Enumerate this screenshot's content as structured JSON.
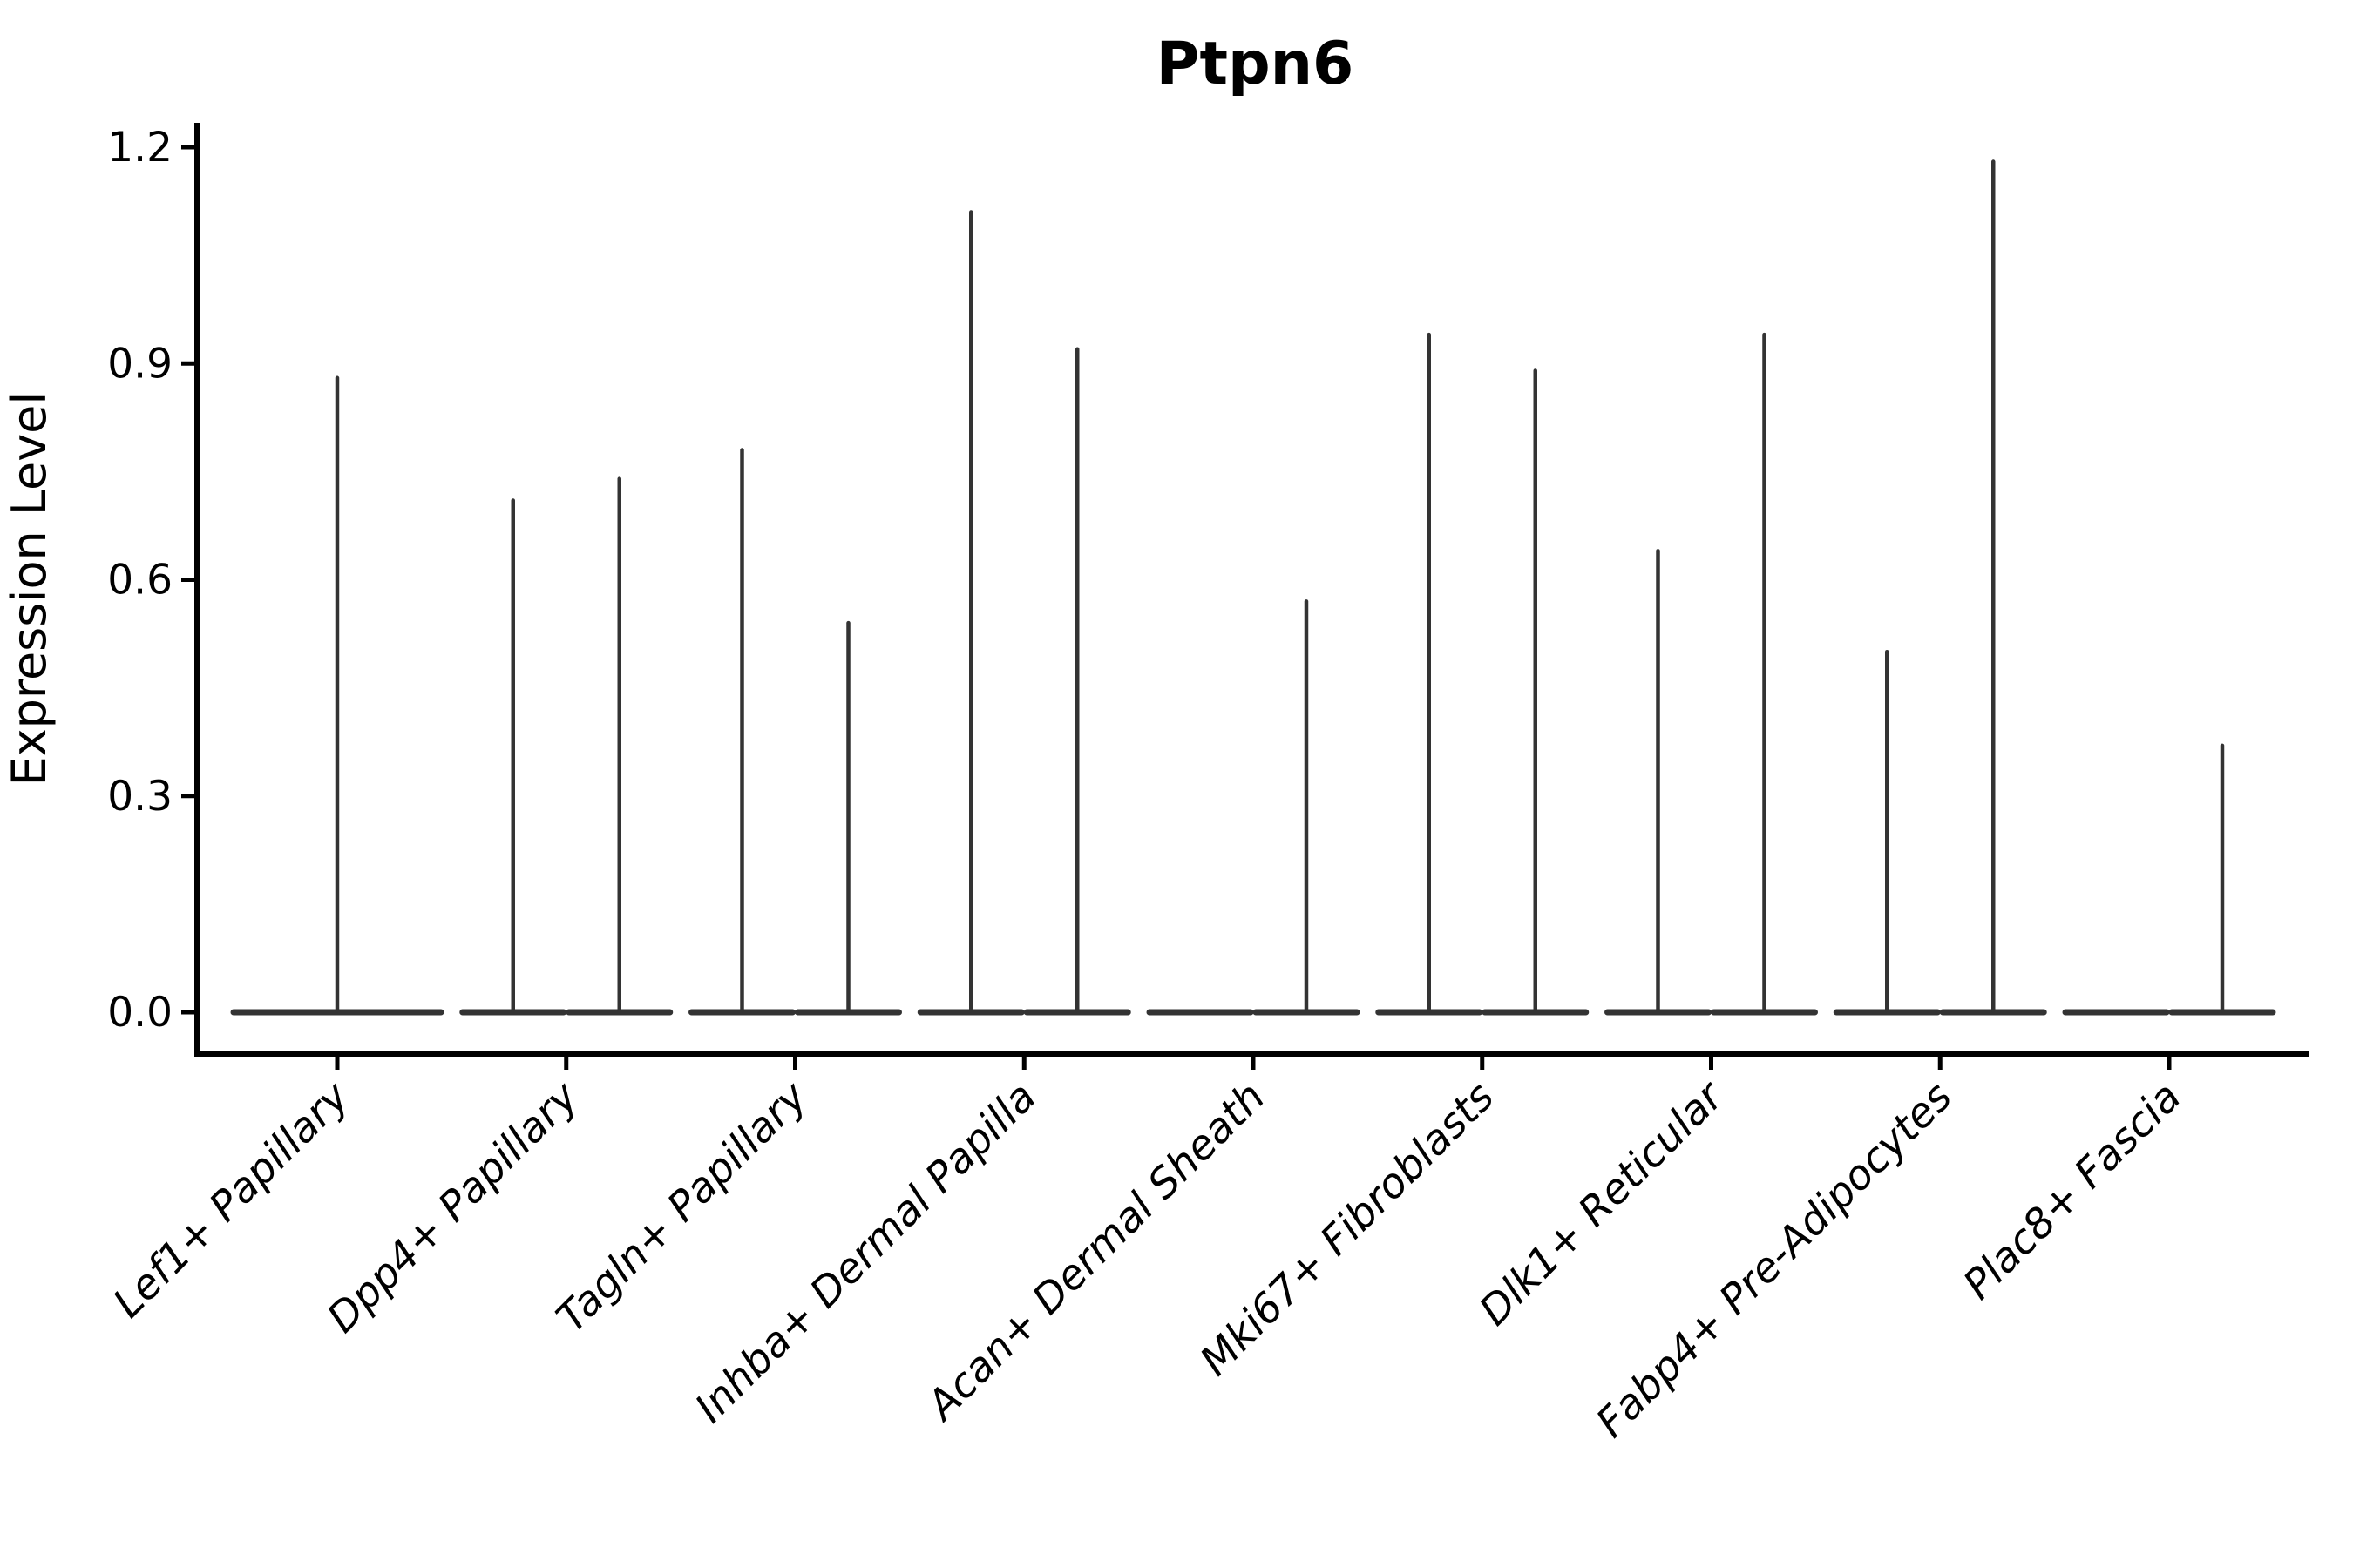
{
  "figure": {
    "background": "#ffffff"
  },
  "chart_data": {
    "type": "violin",
    "title": "Ptpn6",
    "xlabel": "",
    "ylabel": "Expression Level",
    "ylim": [
      0,
      1.234
    ],
    "yticks": [
      {
        "value": 0.0,
        "label": "0.0"
      },
      {
        "value": 0.3,
        "label": "0.3"
      },
      {
        "value": 0.6,
        "label": "0.6"
      },
      {
        "value": 0.9,
        "label": "0.9"
      },
      {
        "value": 1.2,
        "label": "1.2"
      }
    ],
    "grid": false,
    "legend": "none",
    "axis_color": "#000000",
    "violin_color": "#333333",
    "note": "Sparse expression violins: each category shows flat density at 0 with a thin spike up to the max expression value. Categories with two groups show two half-width violins (left/right of the tick); 'full' means a single full-width violin centered on the tick; max 0 means a flat violin with no spike.",
    "categories": [
      {
        "label": "Lef1+ Papillary",
        "violins": [
          {
            "side": "full",
            "max": 0.88
          }
        ]
      },
      {
        "label": "Dpp4+ Papillary",
        "violins": [
          {
            "side": "left",
            "max": 0.71
          },
          {
            "side": "right",
            "max": 0.74
          }
        ]
      },
      {
        "label": "Tagln+ Papillary",
        "violins": [
          {
            "side": "left",
            "max": 0.78
          },
          {
            "side": "right",
            "max": 0.54
          }
        ]
      },
      {
        "label": "Inhba+ Dermal Papilla",
        "violins": [
          {
            "side": "left",
            "max": 1.11
          },
          {
            "side": "right",
            "max": 0.92
          }
        ]
      },
      {
        "label": "Acan+ Dermal Sheath",
        "violins": [
          {
            "side": "left",
            "max": 0.0
          },
          {
            "side": "right",
            "max": 0.57
          }
        ]
      },
      {
        "label": "Mki67+ Fibroblasts",
        "violins": [
          {
            "side": "left",
            "max": 0.94
          },
          {
            "side": "right",
            "max": 0.89
          }
        ]
      },
      {
        "label": "Dlk1+ Reticular",
        "violins": [
          {
            "side": "left",
            "max": 0.64
          },
          {
            "side": "right",
            "max": 0.94
          }
        ]
      },
      {
        "label": "Fabp4+ Pre-Adipocytes",
        "violins": [
          {
            "side": "left",
            "max": 0.5
          },
          {
            "side": "right",
            "max": 1.18
          }
        ]
      },
      {
        "label": "Plac8+ Fascia",
        "violins": [
          {
            "side": "left",
            "max": 0.0
          },
          {
            "side": "right",
            "max": 0.37
          }
        ]
      }
    ]
  }
}
